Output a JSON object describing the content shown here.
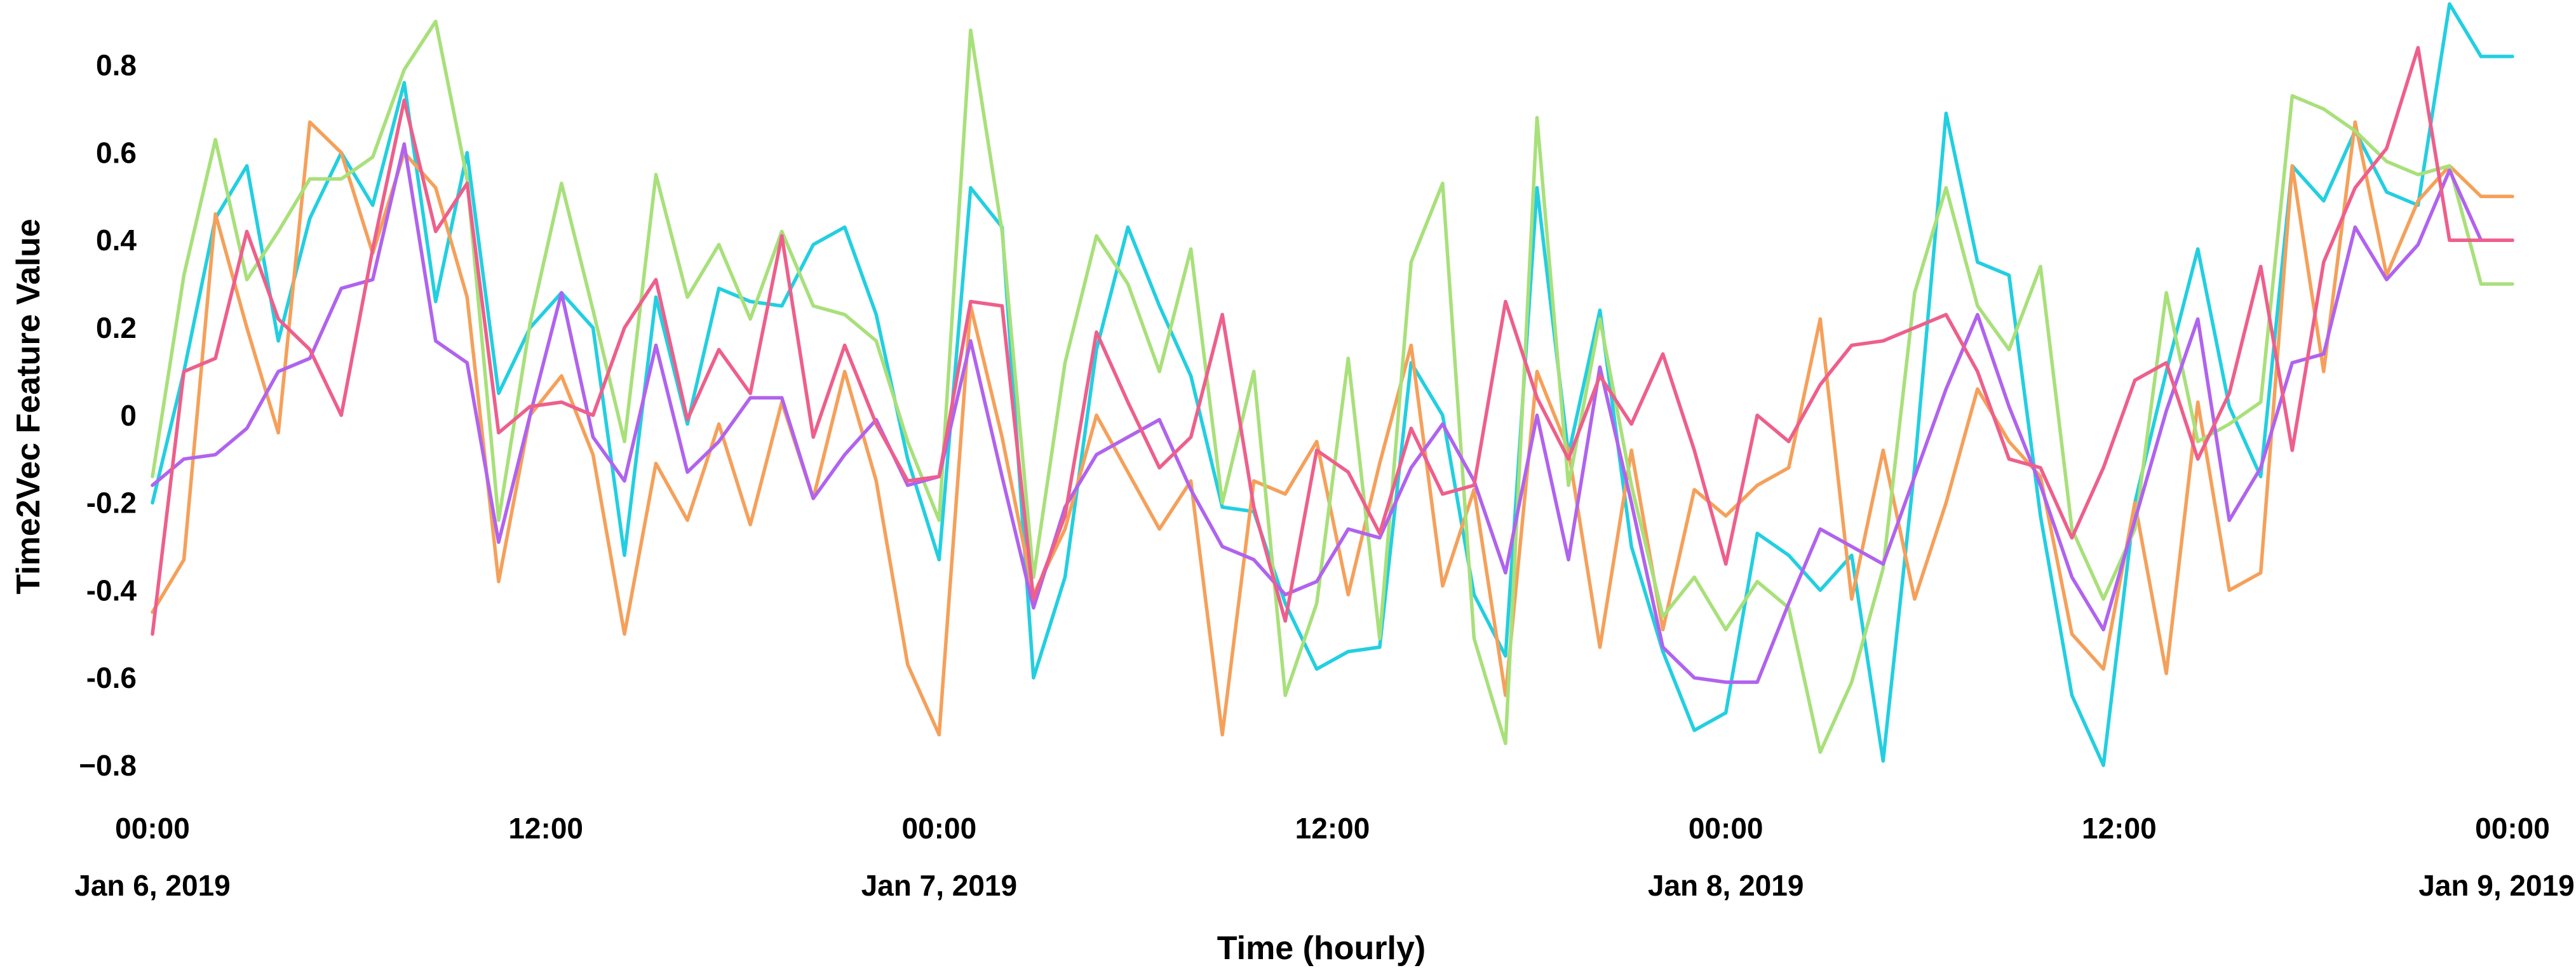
{
  "chart_data": {
    "type": "line",
    "title": "",
    "xlabel": "Time (hourly)",
    "ylabel": "Time2Vec Feature Value",
    "xlim": [
      0,
      72
    ],
    "ylim": [
      -0.88,
      0.92
    ],
    "grid": false,
    "legend": "none",
    "yticks": [
      {
        "value": 0.8,
        "label": "0.8"
      },
      {
        "value": 0.6,
        "label": "0.6"
      },
      {
        "value": 0.4,
        "label": "0.4"
      },
      {
        "value": 0.2,
        "label": "0.2"
      },
      {
        "value": 0.0,
        "label": "0"
      },
      {
        "value": -0.2,
        "label": "-0.2"
      },
      {
        "value": -0.4,
        "label": "-0.4"
      },
      {
        "value": -0.6,
        "label": "-0.6"
      },
      {
        "value": -0.8,
        "label": "−0.8"
      }
    ],
    "xticks": [
      {
        "value": 0,
        "time": "00:00",
        "date": "Jan 6, 2019"
      },
      {
        "value": 12,
        "time": "12:00",
        "date": ""
      },
      {
        "value": 24,
        "time": "00:00",
        "date": "Jan 7, 2019"
      },
      {
        "value": 36,
        "time": "12:00",
        "date": ""
      },
      {
        "value": 48,
        "time": "00:00",
        "date": "Jan 8, 2019"
      },
      {
        "value": 60,
        "time": "12:00",
        "date": ""
      },
      {
        "value": 72,
        "time": "00:00",
        "date": "Jan 9, 2019"
      }
    ],
    "x": [
      0,
      1,
      2,
      3,
      4,
      5,
      6,
      7,
      8,
      9,
      10,
      11,
      12,
      13,
      14,
      15,
      16,
      17,
      18,
      19,
      20,
      21,
      22,
      23,
      24,
      25,
      26,
      27,
      28,
      29,
      30,
      31,
      32,
      33,
      34,
      35,
      36,
      37,
      38,
      39,
      40,
      41,
      42,
      43,
      44,
      45,
      46,
      47,
      48,
      49,
      50,
      51,
      52,
      53,
      54,
      55,
      56,
      57,
      58,
      59,
      60,
      61,
      62,
      63,
      64,
      65,
      66,
      67,
      68,
      69,
      70,
      71,
      72,
      73,
      74,
      75
    ],
    "series": [
      {
        "name": "cyan",
        "color": "#22cfe0",
        "values": [
          -0.2,
          0.1,
          0.45,
          0.57,
          0.17,
          0.45,
          0.6,
          0.48,
          0.76,
          0.26,
          0.6,
          0.05,
          0.2,
          0.28,
          0.2,
          -0.32,
          0.27,
          -0.02,
          0.29,
          0.26,
          0.25,
          0.39,
          0.43,
          0.23,
          -0.1,
          -0.33,
          0.52,
          0.43,
          -0.6,
          -0.37,
          0.15,
          0.43,
          0.25,
          0.09,
          -0.21,
          -0.22,
          -0.43,
          -0.58,
          -0.54,
          -0.53,
          0.12,
          0.0,
          -0.41,
          -0.55,
          0.52,
          -0.09,
          0.24,
          -0.3,
          -0.54,
          -0.72,
          -0.68,
          -0.27,
          -0.32,
          -0.4,
          -0.32,
          -0.79,
          -0.12,
          0.69,
          0.35,
          0.32,
          -0.23,
          -0.64,
          -0.8,
          -0.2,
          0.1,
          0.38,
          0.02,
          -0.14,
          0.57,
          0.49,
          0.65,
          0.51,
          0.48,
          0.94,
          0.82,
          0.82
        ]
      },
      {
        "name": "orange",
        "color": "#f5a05a",
        "values": [
          -0.45,
          -0.33,
          0.46,
          0.2,
          -0.04,
          0.67,
          0.6,
          0.37,
          0.6,
          0.52,
          0.27,
          -0.38,
          0.0,
          0.09,
          -0.09,
          -0.5,
          -0.11,
          -0.24,
          -0.02,
          -0.25,
          0.03,
          -0.19,
          0.1,
          -0.15,
          -0.57,
          -0.73,
          0.25,
          -0.05,
          -0.41,
          -0.26,
          0.0,
          -0.13,
          -0.26,
          -0.15,
          -0.73,
          -0.15,
          -0.18,
          -0.06,
          -0.41,
          -0.11,
          0.16,
          -0.39,
          -0.17,
          -0.64,
          0.1,
          -0.08,
          -0.53,
          -0.08,
          -0.49,
          -0.17,
          -0.23,
          -0.16,
          -0.12,
          0.22,
          -0.42,
          -0.08,
          -0.42,
          -0.2,
          0.06,
          -0.06,
          -0.14,
          -0.5,
          -0.58,
          -0.2,
          -0.59,
          0.03,
          -0.4,
          -0.36,
          0.57,
          0.1,
          0.67,
          0.32,
          0.49,
          0.57,
          0.5,
          0.5
        ]
      },
      {
        "name": "green",
        "color": "#a8e07a",
        "values": [
          -0.14,
          0.32,
          0.63,
          0.31,
          0.42,
          0.54,
          0.54,
          0.59,
          0.79,
          0.9,
          0.54,
          -0.24,
          0.21,
          0.53,
          0.24,
          -0.06,
          0.55,
          0.27,
          0.39,
          0.22,
          0.42,
          0.25,
          0.23,
          0.17,
          -0.06,
          -0.24,
          0.88,
          0.42,
          -0.37,
          0.12,
          0.41,
          0.3,
          0.1,
          0.38,
          -0.2,
          0.1,
          -0.64,
          -0.43,
          0.13,
          -0.51,
          0.35,
          0.53,
          -0.51,
          -0.75,
          0.68,
          -0.16,
          0.22,
          -0.16,
          -0.46,
          -0.37,
          -0.49,
          -0.38,
          -0.44,
          -0.77,
          -0.61,
          -0.35,
          0.28,
          0.52,
          0.25,
          0.15,
          0.34,
          -0.26,
          -0.42,
          -0.26,
          0.28,
          -0.06,
          -0.02,
          0.03,
          0.73,
          0.7,
          0.65,
          0.58,
          0.55,
          0.57,
          0.3,
          0.3
        ]
      },
      {
        "name": "purple",
        "color": "#b063ee",
        "values": [
          -0.16,
          -0.1,
          -0.09,
          -0.03,
          0.1,
          0.13,
          0.29,
          0.31,
          0.62,
          0.17,
          0.12,
          -0.29,
          0.0,
          0.28,
          -0.05,
          -0.15,
          0.16,
          -0.13,
          -0.06,
          0.04,
          0.04,
          -0.19,
          -0.09,
          -0.01,
          -0.16,
          -0.14,
          0.17,
          -0.14,
          -0.44,
          -0.21,
          -0.09,
          -0.05,
          -0.01,
          -0.17,
          -0.3,
          -0.33,
          -0.41,
          -0.38,
          -0.26,
          -0.28,
          -0.12,
          -0.02,
          -0.15,
          -0.36,
          0.0,
          -0.33,
          0.11,
          -0.2,
          -0.53,
          -0.6,
          -0.61,
          -0.61,
          -0.43,
          -0.26,
          -0.3,
          -0.34,
          -0.14,
          0.06,
          0.23,
          0.02,
          -0.16,
          -0.37,
          -0.49,
          -0.24,
          0.01,
          0.22,
          -0.24,
          -0.12,
          0.12,
          0.14,
          0.43,
          0.31,
          0.39,
          0.56,
          0.4,
          0.4
        ]
      },
      {
        "name": "pink",
        "color": "#ee5f8b",
        "values": [
          -0.5,
          0.1,
          0.13,
          0.42,
          0.22,
          0.15,
          0.0,
          0.38,
          0.72,
          0.42,
          0.53,
          -0.04,
          0.02,
          0.03,
          0.0,
          0.2,
          0.31,
          -0.01,
          0.15,
          0.05,
          0.41,
          -0.05,
          0.16,
          -0.02,
          -0.15,
          -0.14,
          0.26,
          0.25,
          -0.42,
          -0.23,
          0.19,
          0.03,
          -0.12,
          -0.05,
          0.23,
          -0.21,
          -0.47,
          -0.08,
          -0.13,
          -0.27,
          -0.03,
          -0.18,
          -0.16,
          0.26,
          0.04,
          -0.1,
          0.09,
          -0.02,
          0.14,
          -0.08,
          -0.34,
          0.0,
          -0.06,
          0.07,
          0.16,
          0.17,
          0.2,
          0.23,
          0.1,
          -0.1,
          -0.12,
          -0.28,
          -0.12,
          0.08,
          0.12,
          -0.1,
          0.05,
          0.34,
          -0.08,
          0.35,
          0.52,
          0.61,
          0.84,
          0.4,
          0.4,
          0.4
        ]
      }
    ]
  }
}
